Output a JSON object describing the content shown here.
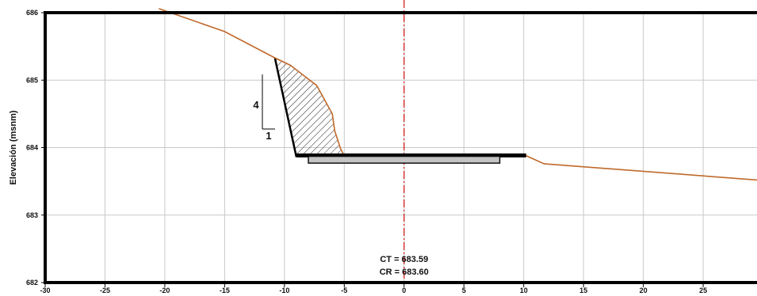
{
  "figure": {
    "ylabel": "Elevación (msnm)",
    "x_ticks": [
      "-30",
      "-25",
      "-20",
      "-15",
      "-10",
      "-5",
      "0",
      "5",
      "10",
      "15",
      "20",
      "25"
    ],
    "y_ticks": [
      "682",
      "683",
      "684",
      "685",
      "686"
    ],
    "annotations": {
      "ct": "CT = 683.59",
      "cr": "CR = 683.60"
    },
    "slope": {
      "rise": "4",
      "run": "1"
    },
    "colors": {
      "ground_line": "#c0692b",
      "centerline": "#d42020",
      "grid": "#c8c8c8",
      "frame": "#000000",
      "slab_fill": "#c4c4c4"
    }
  },
  "chart_data": {
    "type": "line",
    "xlabel": "",
    "ylabel": "Elevación (msnm)",
    "xlim": [
      -30,
      29.5
    ],
    "ylim": [
      682,
      686
    ],
    "grid": true,
    "x_tick_values": [
      -30,
      -25,
      -20,
      -15,
      -10,
      -5,
      0,
      5,
      10,
      15,
      20,
      25
    ],
    "y_tick_values": [
      682,
      683,
      684,
      685,
      686
    ],
    "series": [
      {
        "values_x": [
          -20.5,
          -15,
          -10.8,
          -9.5,
          -7.3,
          -6.0,
          -5.8,
          -5.3,
          -5.0,
          10.2,
          11.7,
          29.5
        ],
        "values_y": [
          686.06,
          685.72,
          685.33,
          685.22,
          684.92,
          684.5,
          684.25,
          683.98,
          683.88,
          683.88,
          683.76,
          683.52
        ]
      }
    ],
    "excavation_face": {
      "x": [
        -10.8,
        -9.0
      ],
      "y": [
        685.33,
        683.86
      ]
    },
    "pavement_top": {
      "x": [
        -9.0,
        10.2
      ],
      "y": [
        683.89,
        683.89
      ]
    },
    "base_slab": {
      "x": [
        -8.0,
        8.0
      ],
      "y": [
        683.77,
        683.87
      ]
    },
    "centerline_x": 0,
    "labels": {
      "ct": 683.59,
      "cr": 683.6
    }
  }
}
